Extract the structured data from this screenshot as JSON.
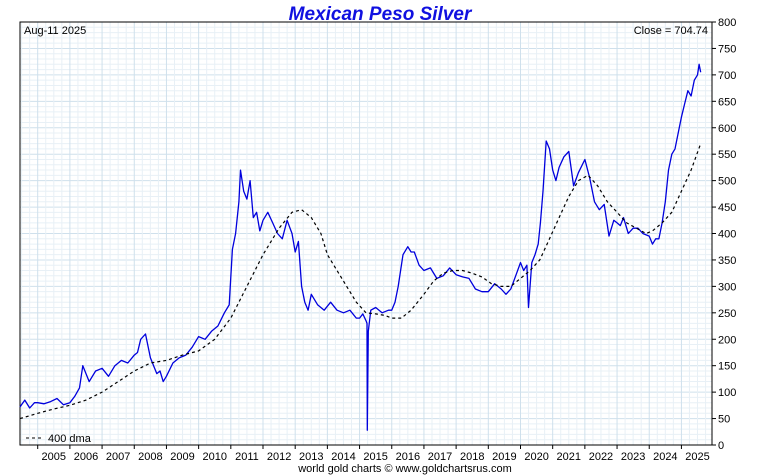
{
  "chart_data": {
    "type": "line",
    "title": "Mexican Peso Silver",
    "date_label": "Aug-11  2025",
    "close_label": "Close = 704.74",
    "footer": "world gold charts © www.goldchartsrus.com",
    "ylim": [
      0,
      800
    ],
    "yticks": [
      0,
      50,
      100,
      150,
      200,
      250,
      300,
      350,
      400,
      450,
      500,
      550,
      600,
      650,
      700,
      750,
      800
    ],
    "xlim": [
      2004.45,
      2025.95
    ],
    "xticks": [
      "2005",
      "2006",
      "2007",
      "2008",
      "2009",
      "2010",
      "2011",
      "2012",
      "2013",
      "2014",
      "2015",
      "2016",
      "2017",
      "2018",
      "2019",
      "2020",
      "2021",
      "2022",
      "2023",
      "2024",
      "2025"
    ],
    "grid": true,
    "y_axis_side": "right",
    "legend_position": "bottom-left",
    "series": [
      {
        "name": "",
        "color": "#0000dd",
        "style": "solid",
        "x": [
          2004.45,
          2004.6,
          2004.75,
          2004.9,
          2005.0,
          2005.2,
          2005.4,
          2005.6,
          2005.8,
          2006.0,
          2006.15,
          2006.3,
          2006.4,
          2006.6,
          2006.8,
          2007.0,
          2007.2,
          2007.4,
          2007.6,
          2007.8,
          2008.0,
          2008.1,
          2008.2,
          2008.35,
          2008.5,
          2008.6,
          2008.7,
          2008.8,
          2008.9,
          2009.0,
          2009.2,
          2009.4,
          2009.6,
          2009.8,
          2010.0,
          2010.2,
          2010.4,
          2010.6,
          2010.8,
          2010.95,
          2011.05,
          2011.15,
          2011.25,
          2011.3,
          2011.4,
          2011.5,
          2011.6,
          2011.7,
          2011.8,
          2011.9,
          2012.0,
          2012.15,
          2012.3,
          2012.45,
          2012.6,
          2012.75,
          2012.9,
          2013.0,
          2013.1,
          2013.2,
          2013.3,
          2013.4,
          2013.5,
          2013.7,
          2013.9,
          2014.1,
          2014.3,
          2014.5,
          2014.7,
          2014.9,
          2015.0,
          2015.1,
          2015.2,
          2015.23,
          2015.24,
          2015.27,
          2015.35,
          2015.5,
          2015.7,
          2015.9,
          2016.0,
          2016.1,
          2016.2,
          2016.35,
          2016.5,
          2016.6,
          2016.7,
          2016.85,
          2017.0,
          2017.2,
          2017.4,
          2017.6,
          2017.8,
          2018.0,
          2018.2,
          2018.4,
          2018.6,
          2018.8,
          2019.0,
          2019.2,
          2019.4,
          2019.55,
          2019.7,
          2019.85,
          2020.0,
          2020.1,
          2020.2,
          2020.25,
          2020.35,
          2020.45,
          2020.55,
          2020.62,
          2020.7,
          2020.8,
          2020.9,
          2021.0,
          2021.1,
          2021.2,
          2021.35,
          2021.5,
          2021.65,
          2021.8,
          2022.0,
          2022.15,
          2022.3,
          2022.45,
          2022.6,
          2022.75,
          2022.9,
          2023.0,
          2023.1,
          2023.2,
          2023.35,
          2023.5,
          2023.65,
          2023.8,
          2024.0,
          2024.1,
          2024.2,
          2024.3,
          2024.4,
          2024.5,
          2024.6,
          2024.7,
          2024.8,
          2024.9,
          2025.0,
          2025.1,
          2025.2,
          2025.3,
          2025.4,
          2025.5,
          2025.55,
          2025.6
        ],
        "values": [
          72,
          85,
          70,
          80,
          80,
          78,
          82,
          88,
          76,
          80,
          92,
          108,
          150,
          120,
          140,
          145,
          130,
          150,
          160,
          155,
          170,
          175,
          200,
          210,
          165,
          150,
          135,
          140,
          120,
          130,
          155,
          165,
          170,
          185,
          205,
          200,
          215,
          225,
          250,
          265,
          370,
          400,
          460,
          520,
          480,
          465,
          500,
          430,
          440,
          405,
          425,
          440,
          420,
          400,
          390,
          425,
          400,
          365,
          385,
          300,
          270,
          255,
          285,
          265,
          255,
          270,
          255,
          250,
          255,
          240,
          240,
          248,
          235,
          230,
          28,
          215,
          255,
          260,
          250,
          255,
          255,
          270,
          300,
          360,
          375,
          365,
          365,
          340,
          330,
          335,
          315,
          320,
          335,
          322,
          318,
          315,
          295,
          290,
          290,
          305,
          295,
          285,
          295,
          320,
          345,
          330,
          340,
          260,
          345,
          360,
          380,
          420,
          480,
          575,
          560,
          520,
          500,
          525,
          545,
          555,
          490,
          515,
          540,
          505,
          460,
          445,
          455,
          395,
          425,
          420,
          415,
          430,
          400,
          410,
          410,
          400,
          395,
          380,
          390,
          390,
          420,
          460,
          520,
          550,
          560,
          590,
          620,
          645,
          670,
          660,
          690,
          700,
          720,
          705
        ]
      },
      {
        "name": "400 dma",
        "color": "#000000",
        "style": "dashed",
        "x": [
          2004.45,
          2005.0,
          2005.5,
          2006.0,
          2006.5,
          2007.0,
          2007.5,
          2008.0,
          2008.5,
          2009.0,
          2009.5,
          2010.0,
          2010.5,
          2011.0,
          2011.5,
          2012.0,
          2012.5,
          2012.9,
          2013.2,
          2013.5,
          2013.8,
          2014.0,
          2014.3,
          2014.6,
          2014.9,
          2015.2,
          2015.5,
          2015.8,
          2016.0,
          2016.3,
          2016.6,
          2017.0,
          2017.3,
          2017.6,
          2017.9,
          2018.2,
          2018.5,
          2018.8,
          2019.1,
          2019.4,
          2019.7,
          2020.0,
          2020.3,
          2020.6,
          2020.9,
          2021.2,
          2021.5,
          2021.8,
          2022.1,
          2022.4,
          2022.7,
          2023.0,
          2023.3,
          2023.6,
          2023.9,
          2024.1,
          2024.4,
          2024.7,
          2025.0,
          2025.3,
          2025.6
        ],
        "values": [
          50,
          60,
          68,
          75,
          85,
          100,
          120,
          140,
          155,
          160,
          170,
          178,
          200,
          240,
          300,
          360,
          410,
          440,
          445,
          430,
          400,
          360,
          330,
          300,
          270,
          250,
          248,
          245,
          240,
          240,
          255,
          285,
          310,
          325,
          330,
          330,
          325,
          318,
          305,
          300,
          300,
          315,
          330,
          350,
          390,
          430,
          470,
          500,
          510,
          490,
          460,
          440,
          420,
          410,
          400,
          405,
          420,
          440,
          480,
          520,
          570
        ]
      }
    ],
    "legend": [
      {
        "label": "400 dma",
        "style": "dashed",
        "color": "#000000"
      }
    ]
  }
}
